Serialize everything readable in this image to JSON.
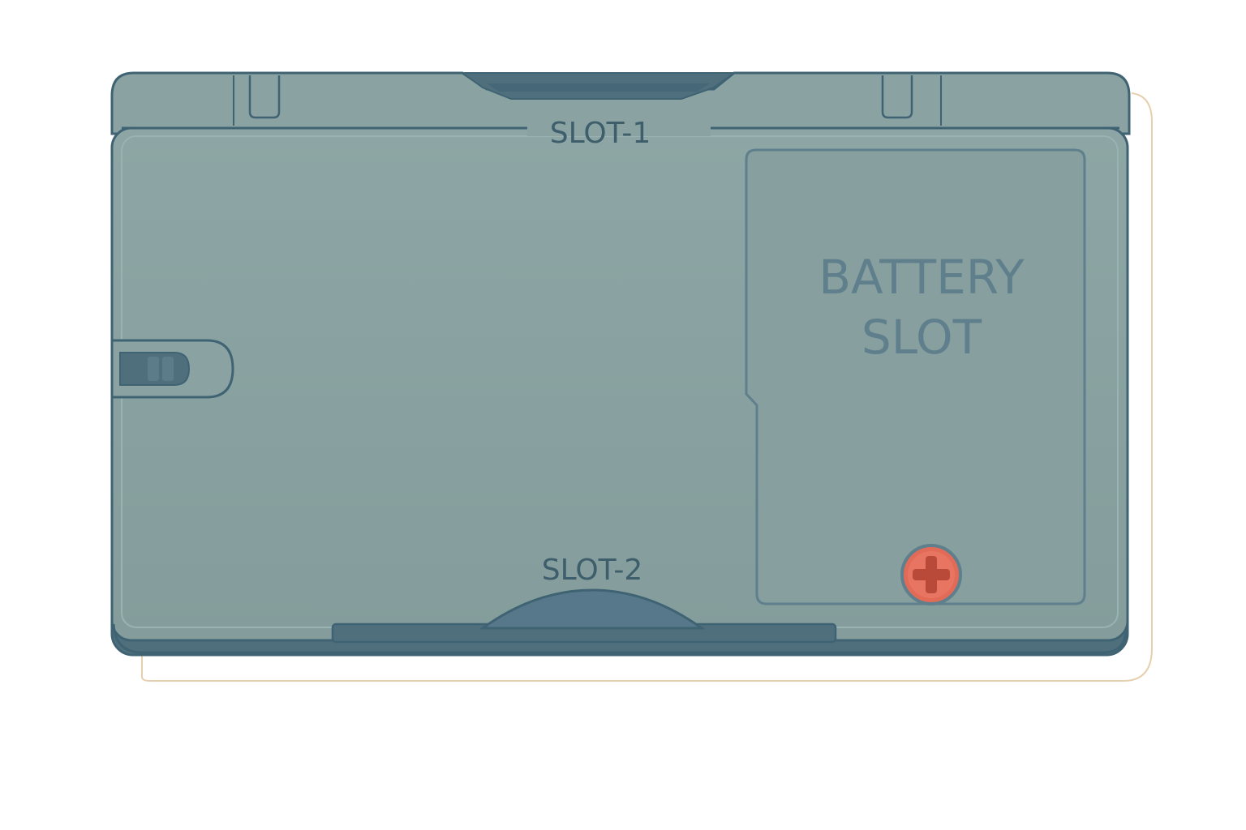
{
  "device": {
    "slot1_label": "SLOT-1",
    "slot2_label": "SLOT-2",
    "battery_label_line1": "BATTERY",
    "battery_label_line2": "SLOT",
    "screw_icon": "phillips-screw-icon"
  },
  "colors": {
    "body": "#88a1a0",
    "body_dark": "#7c9594",
    "outline": "#3f6373",
    "deep": "#4f6f7d",
    "text": "#3e5e6c",
    "battery_text": "#5f7f8c",
    "screw": "#e26b57",
    "screw_dark": "#b94a3a",
    "shadow_outline": "#e0c9a8"
  }
}
